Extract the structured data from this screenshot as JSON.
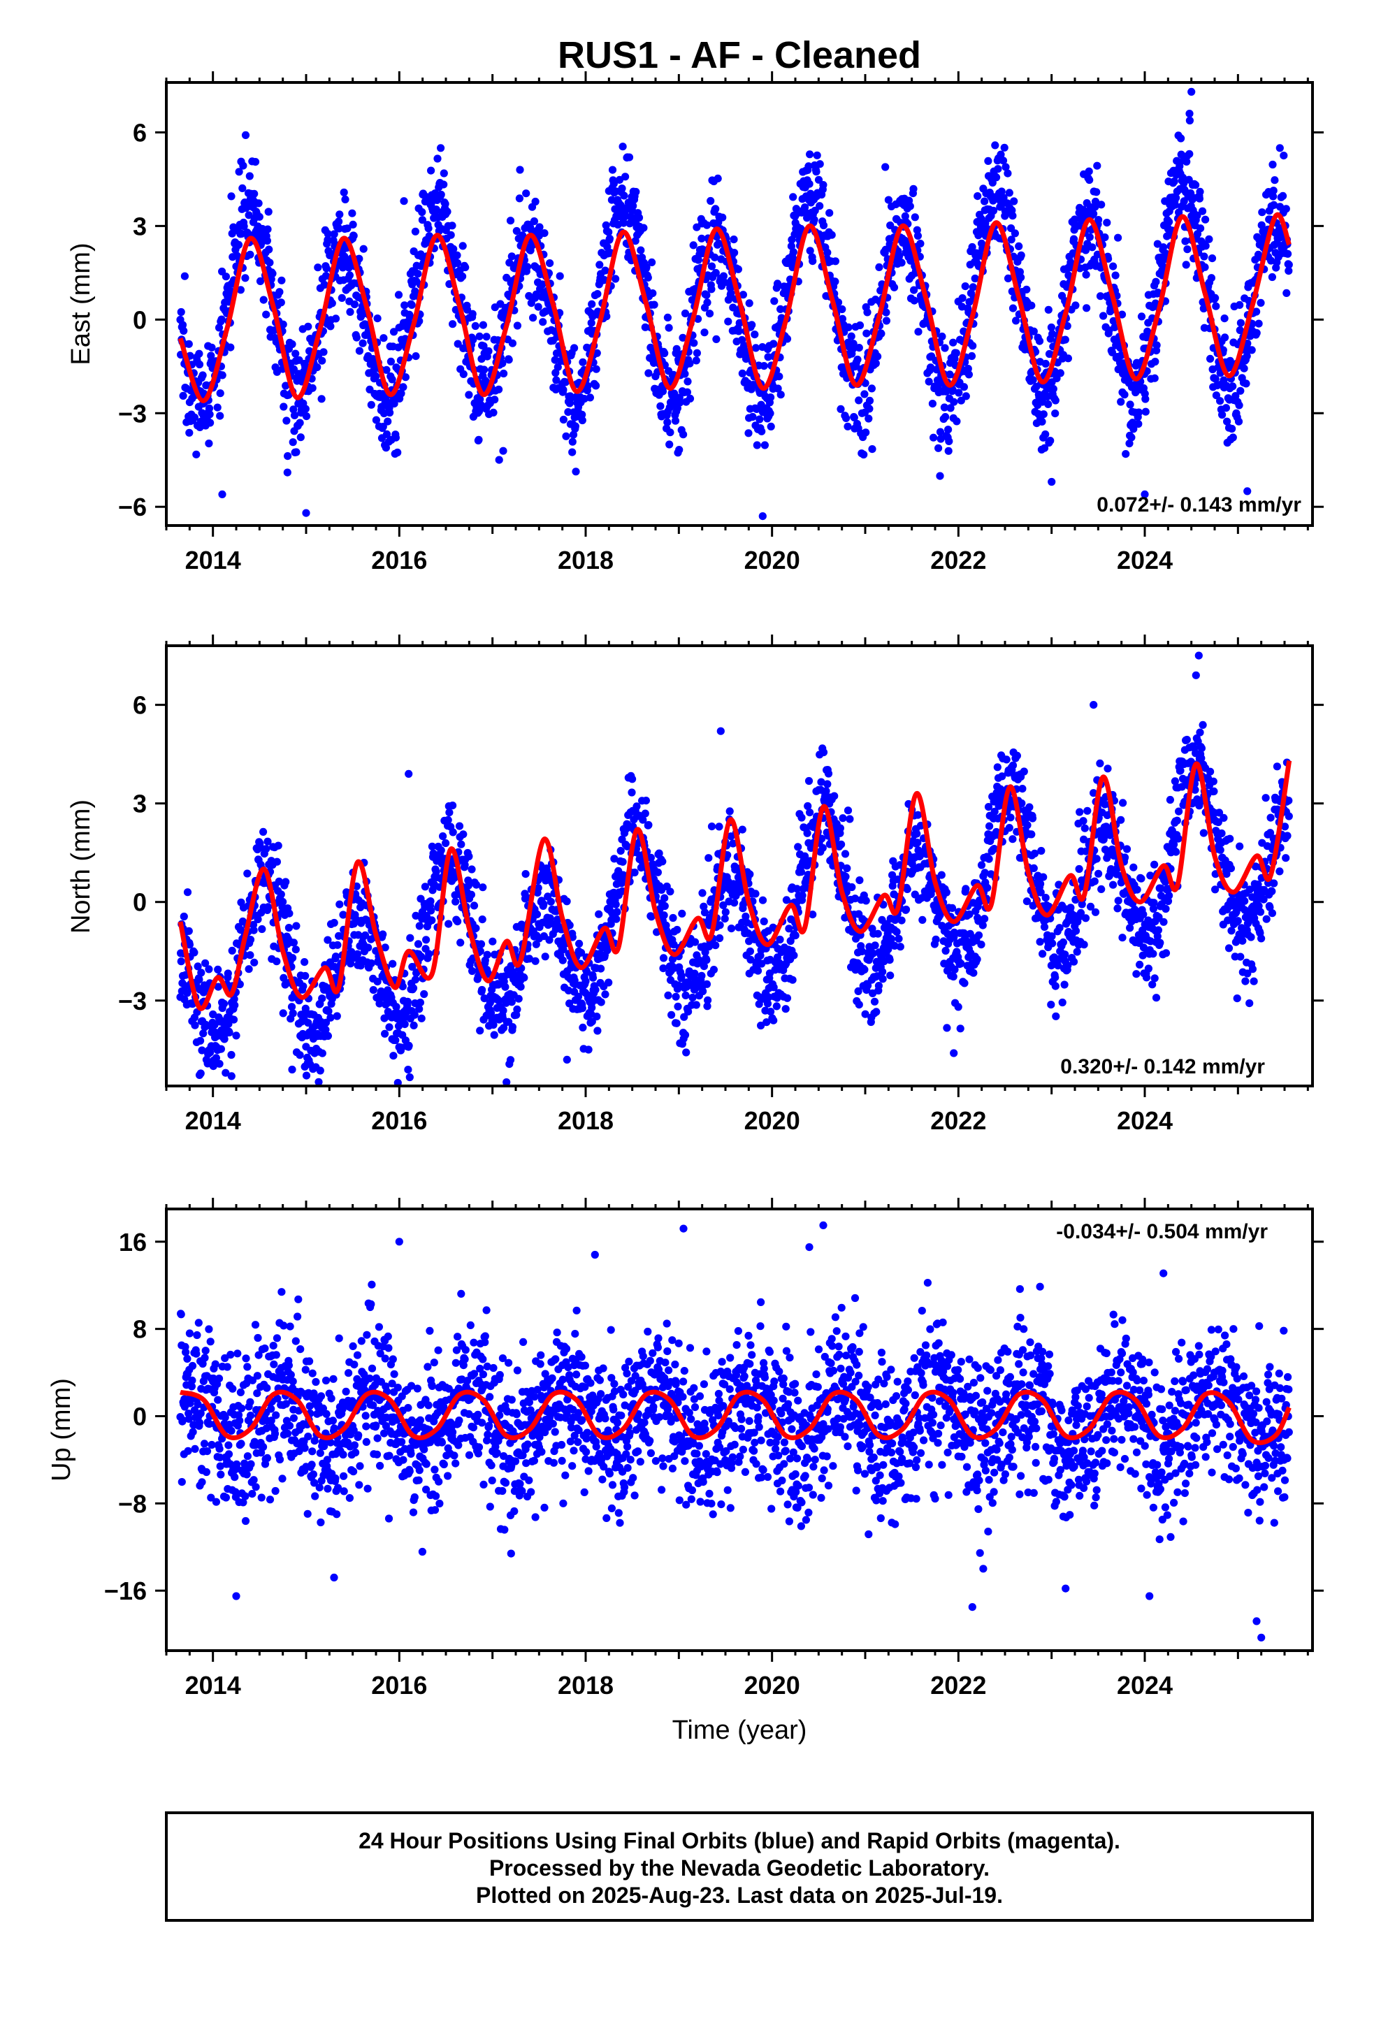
{
  "figure": {
    "title": "RUS1  - AF - Cleaned",
    "xlabel": "Time (year)",
    "footer": [
      "24 Hour Positions Using Final Orbits (blue) and Rapid Orbits (magenta).",
      "Processed by the Nevada Geodetic Laboratory.",
      "Plotted on 2025-Aug-23. Last data on 2025-Jul-19."
    ],
    "colors": {
      "points": "#0000ff",
      "fit": "#ff0000",
      "frame": "#000000"
    }
  },
  "chart_data": [
    {
      "type": "scatter",
      "ylabel": "East (mm)",
      "rate_text": "0.072+/- 0.143 mm/yr",
      "xlim": [
        2013.5,
        2025.8
      ],
      "ylim": [
        -6.6,
        7.6
      ],
      "x_ticks": [
        2014,
        2016,
        2018,
        2020,
        2022,
        2024
      ],
      "y_ticks": [
        6,
        3,
        0,
        -3,
        -6
      ],
      "y_tick_labels": [
        "6",
        "3",
        "0",
        "−3",
        "−6"
      ],
      "data_range": [
        2013.65,
        2025.55
      ],
      "fit": {
        "name": "model",
        "x": [
          2013.65,
          2013.9,
          2014.15,
          2014.4,
          2014.65,
          2014.9,
          2015.15,
          2015.4,
          2015.65,
          2015.9,
          2016.15,
          2016.4,
          2016.65,
          2016.9,
          2017.15,
          2017.4,
          2017.65,
          2017.9,
          2018.15,
          2018.4,
          2018.65,
          2018.9,
          2019.15,
          2019.4,
          2019.65,
          2019.9,
          2020.15,
          2020.4,
          2020.65,
          2020.9,
          2021.15,
          2021.4,
          2021.65,
          2021.9,
          2022.15,
          2022.4,
          2022.65,
          2022.9,
          2023.15,
          2023.4,
          2023.65,
          2023.9,
          2024.15,
          2024.4,
          2024.65,
          2024.9,
          2025.15,
          2025.4,
          2025.55
        ],
        "y": [
          -0.6,
          -2.6,
          -0.3,
          2.6,
          0.4,
          -2.5,
          -0.3,
          2.6,
          0.4,
          -2.4,
          -0.2,
          2.7,
          0.4,
          -2.4,
          -0.2,
          2.7,
          0.5,
          -2.3,
          -0.1,
          2.8,
          0.5,
          -2.2,
          0.0,
          2.9,
          0.6,
          -2.2,
          0.0,
          3.0,
          0.6,
          -2.1,
          0.1,
          3.0,
          0.7,
          -2.1,
          0.1,
          3.1,
          0.7,
          -2.0,
          0.2,
          3.2,
          0.8,
          -1.9,
          0.3,
          3.3,
          0.8,
          -1.8,
          0.4,
          3.3,
          2.4
        ]
      },
      "scatter": {
        "name": "daily positions",
        "model": {
          "offset": 0.0,
          "trend_mm_per_yr": 0.072,
          "annual_amp": 2.6,
          "amp_growth_per_yr": 0.05,
          "annual_peak_frac": 0.4,
          "semiannual_amp": 0.0,
          "semiannual_peak_frac": 0.0,
          "noise_sd": 0.95,
          "step_per_yr": 7,
          "extra_seasonal": 0.6
        },
        "outliers": [
          [
            2024.5,
            7.3
          ],
          [
            2024.48,
            6.6
          ],
          [
            2025.45,
            5.5
          ],
          [
            2019.9,
            -6.3
          ],
          [
            2015.0,
            -6.2
          ],
          [
            2014.1,
            -5.6
          ],
          [
            2016.05,
            3.8
          ],
          [
            2014.8,
            -4.9
          ],
          [
            2025.1,
            -5.5
          ],
          [
            2023.0,
            -5.2
          ],
          [
            2024.0,
            -5.6
          ]
        ]
      }
    },
    {
      "type": "scatter",
      "ylabel": "North (mm)",
      "rate_text": "0.320+/- 0.142 mm/yr",
      "xlim": [
        2013.5,
        2025.8
      ],
      "ylim": [
        -5.6,
        7.8
      ],
      "x_ticks": [
        2014,
        2016,
        2018,
        2020,
        2022,
        2024
      ],
      "y_ticks": [
        6,
        3,
        0,
        -3
      ],
      "y_tick_labels": [
        "6",
        "3",
        "0",
        "−3"
      ],
      "data_range": [
        2013.65,
        2025.55
      ],
      "fit": {
        "name": "model",
        "x": [
          2013.65,
          2013.85,
          2014.05,
          2014.2,
          2014.35,
          2014.55,
          2014.75,
          2014.95,
          2015.2,
          2015.35,
          2015.55,
          2015.75,
          2015.95,
          2016.1,
          2016.35,
          2016.55,
          2016.75,
          2016.95,
          2017.15,
          2017.3,
          2017.55,
          2017.75,
          2017.95,
          2018.2,
          2018.35,
          2018.55,
          2018.75,
          2018.95,
          2019.2,
          2019.35,
          2019.55,
          2019.75,
          2019.95,
          2020.2,
          2020.35,
          2020.55,
          2020.75,
          2020.95,
          2021.2,
          2021.35,
          2021.55,
          2021.75,
          2021.95,
          2022.2,
          2022.35,
          2022.55,
          2022.75,
          2022.95,
          2023.2,
          2023.35,
          2023.55,
          2023.75,
          2023.95,
          2024.2,
          2024.35,
          2024.55,
          2024.75,
          2024.95,
          2025.2,
          2025.35,
          2025.55
        ],
        "y": [
          -0.6,
          -3.2,
          -2.3,
          -2.8,
          -1.0,
          1.0,
          -1.5,
          -2.9,
          -2.0,
          -2.6,
          1.2,
          -1.0,
          -2.6,
          -1.5,
          -2.2,
          1.6,
          -0.8,
          -2.4,
          -1.2,
          -1.8,
          1.9,
          -0.5,
          -2.0,
          -0.8,
          -1.4,
          2.2,
          -0.3,
          -1.6,
          -0.5,
          -1.0,
          2.5,
          0.0,
          -1.3,
          -0.1,
          -0.8,
          2.9,
          0.3,
          -0.9,
          0.2,
          -0.2,
          3.3,
          0.6,
          -0.6,
          0.5,
          -0.1,
          3.5,
          0.9,
          -0.4,
          0.8,
          0.2,
          3.8,
          1.1,
          0.0,
          1.1,
          0.5,
          4.2,
          1.4,
          0.3,
          1.4,
          0.8,
          4.3
        ]
      },
      "scatter": {
        "name": "daily positions",
        "model": {
          "offset": -2.3,
          "trend_mm_per_yr": 0.32,
          "annual_amp": 1.9,
          "amp_growth_per_yr": 0.02,
          "annual_peak_frac": 0.55,
          "semiannual_amp": 0.0,
          "semiannual_peak_frac": 0.0,
          "noise_sd": 0.85,
          "step_per_yr": 7,
          "extra_seasonal": 0.8
        },
        "outliers": [
          [
            2024.58,
            7.5
          ],
          [
            2024.55,
            6.9
          ],
          [
            2023.45,
            6.0
          ],
          [
            2019.45,
            5.2
          ],
          [
            2016.1,
            3.9
          ],
          [
            2014.2,
            -5.3
          ],
          [
            2014.85,
            -5.1
          ],
          [
            2021.95,
            -4.6
          ],
          [
            2017.8,
            -4.8
          ]
        ]
      }
    },
    {
      "type": "scatter",
      "ylabel": "Up (mm)",
      "rate_text": "-0.034+/- 0.504 mm/yr",
      "xlim": [
        2013.5,
        2025.8
      ],
      "ylim": [
        -21.5,
        19.0
      ],
      "x_ticks": [
        2014,
        2016,
        2018,
        2020,
        2022,
        2024
      ],
      "y_ticks": [
        16,
        8,
        0,
        -8,
        -16
      ],
      "y_tick_labels": [
        "16",
        "8",
        "0",
        "−8",
        "−16"
      ],
      "data_range": [
        2013.65,
        2025.55
      ],
      "fit": {
        "name": "model",
        "x": [
          2013.65,
          2013.9,
          2014.15,
          2014.4,
          2014.65,
          2014.9,
          2015.15,
          2015.4,
          2015.65,
          2015.9,
          2016.15,
          2016.4,
          2016.65,
          2016.9,
          2017.15,
          2017.4,
          2017.65,
          2017.9,
          2018.15,
          2018.4,
          2018.65,
          2018.9,
          2019.15,
          2019.4,
          2019.65,
          2019.9,
          2020.15,
          2020.4,
          2020.65,
          2020.9,
          2021.15,
          2021.4,
          2021.65,
          2021.9,
          2022.15,
          2022.4,
          2022.65,
          2022.9,
          2023.15,
          2023.4,
          2023.65,
          2023.9,
          2024.15,
          2024.4,
          2024.65,
          2024.9,
          2025.15,
          2025.4,
          2025.55
        ],
        "y": [
          2.2,
          1.5,
          -1.8,
          -1.2,
          2.0,
          1.5,
          -1.8,
          -1.2,
          2.0,
          1.5,
          -1.8,
          -1.2,
          2.0,
          1.5,
          -1.8,
          -1.2,
          2.0,
          1.5,
          -1.8,
          -1.2,
          2.0,
          1.5,
          -1.8,
          -1.2,
          2.0,
          1.5,
          -1.8,
          -1.2,
          2.0,
          1.5,
          -1.8,
          -1.2,
          2.0,
          1.5,
          -1.8,
          -1.2,
          2.0,
          1.5,
          -1.8,
          -1.2,
          2.0,
          1.5,
          -1.8,
          -1.2,
          2.0,
          1.3,
          -2.2,
          -1.8,
          0.8
        ]
      },
      "scatter": {
        "name": "daily positions",
        "model": {
          "offset": 0.0,
          "trend_mm_per_yr": -0.034,
          "annual_amp": 2.2,
          "amp_growth_per_yr": 0.0,
          "annual_peak_frac": 0.75,
          "semiannual_amp": 0.0,
          "semiannual_peak_frac": 0.0,
          "noise_sd": 3.6,
          "step_per_yr": 7,
          "extra_seasonal": 0.0
        },
        "outliers": [
          [
            2019.05,
            17.2
          ],
          [
            2020.55,
            17.5
          ],
          [
            2020.4,
            15.5
          ],
          [
            2016.0,
            16.0
          ],
          [
            2018.1,
            14.8
          ],
          [
            2024.2,
            13.1
          ],
          [
            2022.15,
            -17.5
          ],
          [
            2014.25,
            -16.5
          ],
          [
            2024.05,
            -16.5
          ],
          [
            2025.2,
            -18.8
          ],
          [
            2025.25,
            -20.3
          ],
          [
            2023.15,
            -15.8
          ],
          [
            2015.3,
            -14.8
          ],
          [
            2017.2,
            -12.6
          ]
        ]
      }
    }
  ]
}
